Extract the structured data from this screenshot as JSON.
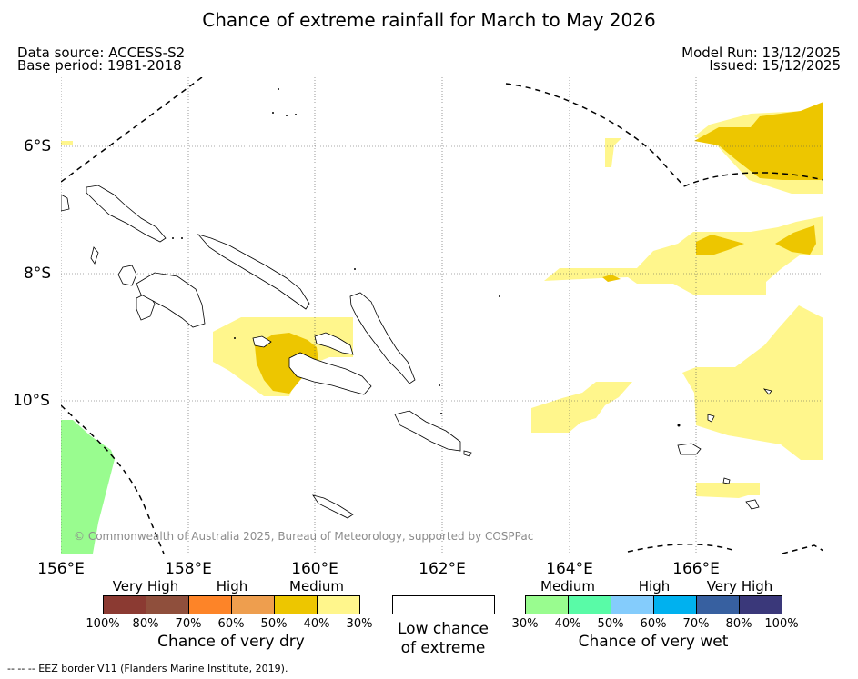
{
  "title": "Chance of extreme rainfall for March to May 2026",
  "header": {
    "data_source": "Data source: ACCESS-S2",
    "base_period": "Base period: 1981-2018",
    "model_run": "Model Run: 13/12/2025",
    "issued": "Issued: 15/12/2025"
  },
  "map": {
    "region": "Solomon Islands",
    "lon_ticks": [
      "156°E",
      "158°E",
      "160°E",
      "162°E",
      "164°E",
      "166°E"
    ],
    "lat_ticks": [
      "6°S",
      "8°S",
      "10°S"
    ],
    "copyright": "© Commonwealth of Australia 2025, Bureau of Meteorology, supported by COSPPac"
  },
  "legend": {
    "dry": {
      "categories": [
        "Very High",
        "High",
        "Medium"
      ],
      "percentages": [
        "100%",
        "80%",
        "70%",
        "60%",
        "50%",
        "40%",
        "30%"
      ],
      "colors": [
        "#8b3a32",
        "#8f4f3c",
        "#fd8428",
        "#ee9e4e",
        "#edc600",
        "#fff68c"
      ],
      "caption": "Chance of very dry"
    },
    "low": {
      "line1": "Low chance",
      "line2": "of extreme"
    },
    "wet": {
      "categories": [
        "Medium",
        "High",
        "Very High"
      ],
      "percentages": [
        "30%",
        "40%",
        "50%",
        "60%",
        "70%",
        "80%",
        "100%"
      ],
      "colors": [
        "#99fc8f",
        "#59fba7",
        "#84ccfc",
        "#00b1ef",
        "#3760a0",
        "#3a387a"
      ],
      "caption": "Chance of very wet"
    }
  },
  "footnote": "--  --  -- EEZ border V11 (Flanders Marine Institute, 2019).",
  "colors": {
    "medium_dry": "#fff68c",
    "high_dry": "#edc600",
    "medium_wet": "#99fc8f"
  }
}
